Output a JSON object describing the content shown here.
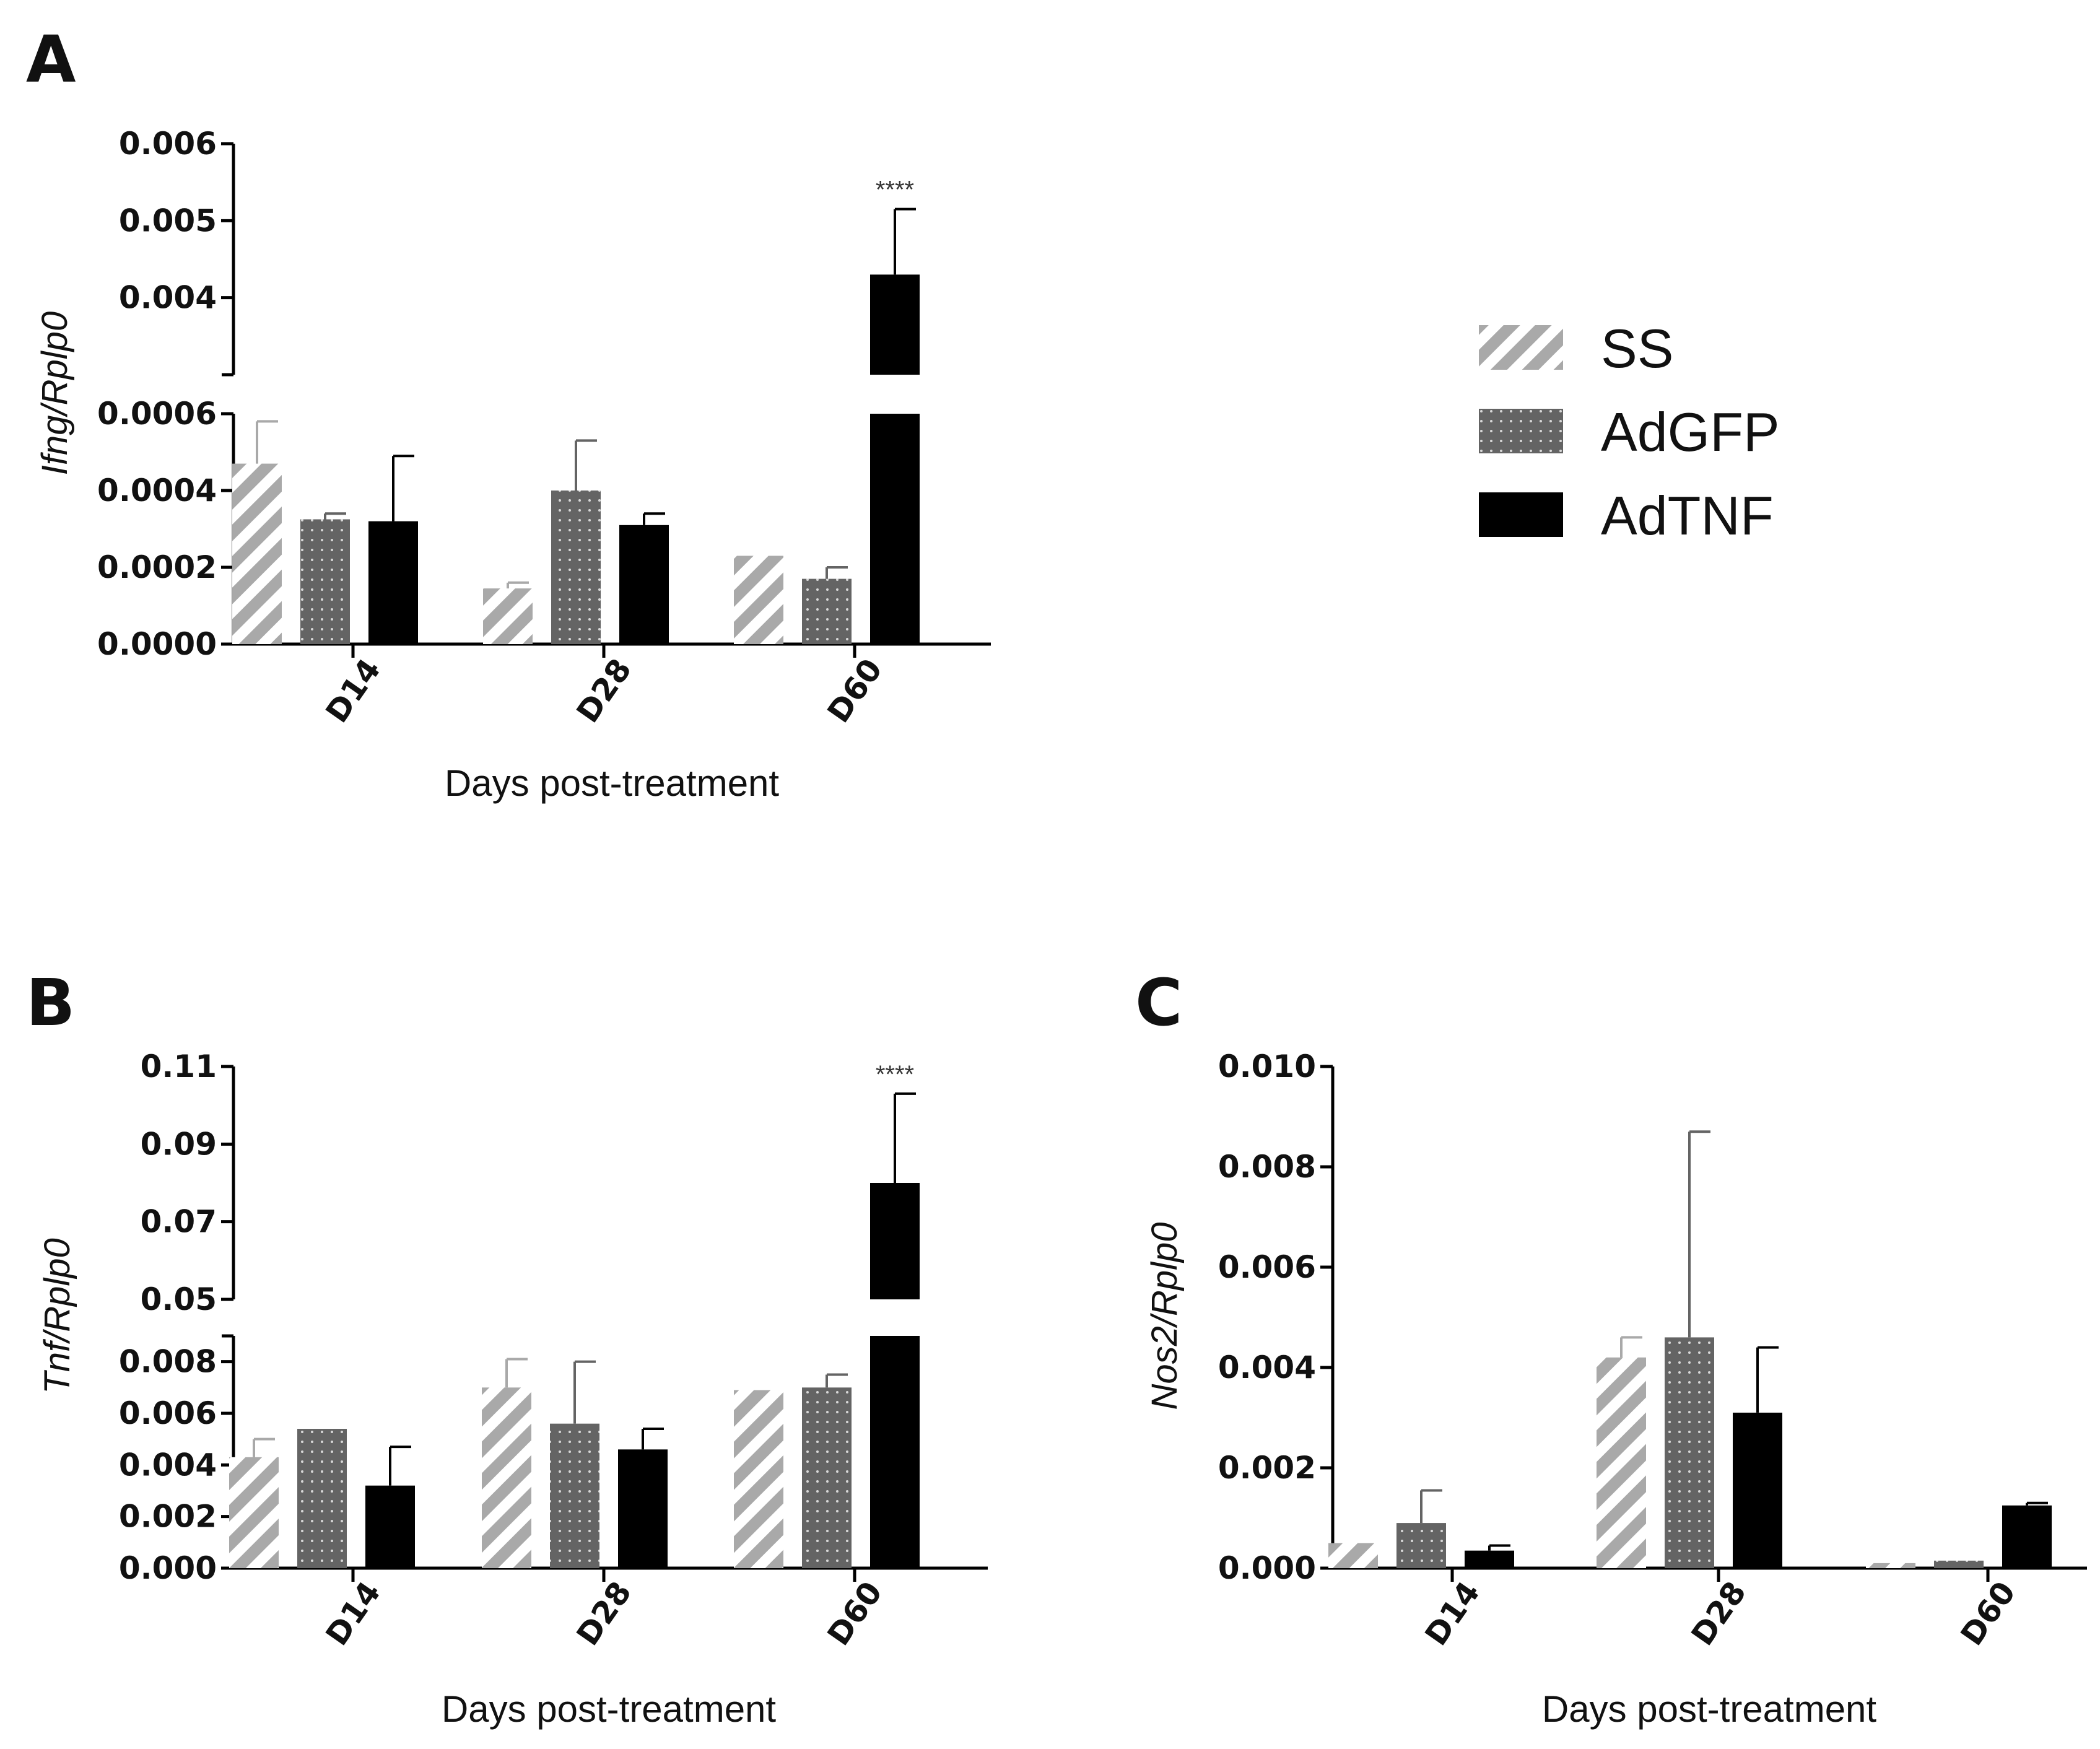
{
  "colors": {
    "ss": "#a9a9a9",
    "adgfp": "#646464",
    "adtnf": "#000000"
  },
  "legend": [
    {
      "label": "SS",
      "key": "ss"
    },
    {
      "label": "AdGFP",
      "key": "adgfp"
    },
    {
      "label": "AdTNF",
      "key": "adtnf"
    }
  ],
  "chart_data": [
    {
      "panel": "A",
      "type": "bar",
      "title": "",
      "xlabel": "Days post-treatment",
      "ylabel_gene": "Ifng",
      "ylabel_ref": "/Rplp0",
      "categories": [
        "D14",
        "D28",
        "D60"
      ],
      "axis_break": true,
      "lower_range": [
        0,
        0.0006
      ],
      "lower_ticks": [
        "0.0000",
        "0.0002",
        "0.0004",
        "0.0006"
      ],
      "upper_range": [
        0.003,
        0.006
      ],
      "upper_ticks": [
        "0.004",
        "0.005",
        "0.006"
      ],
      "series": [
        {
          "name": "SS",
          "values": [
            0.00047,
            0.000145,
            0.00023
          ],
          "errors": [
            0.00011,
            1.5e-05,
            0.0
          ]
        },
        {
          "name": "AdGFP",
          "values": [
            0.000325,
            0.0004,
            0.00017
          ],
          "errors": [
            1.5e-05,
            0.00013,
            3e-05
          ]
        },
        {
          "name": "AdTNF",
          "values": [
            0.00032,
            0.00031,
            0.0043
          ],
          "errors": [
            0.00017,
            3e-05,
            0.00085
          ]
        }
      ],
      "annotations": [
        {
          "category": "D60",
          "series": "AdTNF",
          "text": "****"
        }
      ]
    },
    {
      "panel": "B",
      "type": "bar",
      "title": "",
      "xlabel": "Days post-treatment",
      "ylabel_gene": "Tnf",
      "ylabel_ref": "/Rplp0",
      "categories": [
        "D14",
        "D28",
        "D60"
      ],
      "axis_break": true,
      "lower_range": [
        0,
        0.009
      ],
      "lower_ticks": [
        "0.000",
        "0.002",
        "0.004",
        "0.006",
        "0.008"
      ],
      "upper_range": [
        0.05,
        0.11
      ],
      "upper_ticks": [
        "0.05",
        "0.07",
        "0.09",
        "0.11"
      ],
      "series": [
        {
          "name": "SS",
          "values": [
            0.0043,
            0.007,
            0.0069
          ],
          "errors": [
            0.0007,
            0.0011,
            0.0
          ]
        },
        {
          "name": "AdGFP",
          "values": [
            0.0054,
            0.0056,
            0.007
          ],
          "errors": [
            0.0,
            0.0024,
            0.0005
          ]
        },
        {
          "name": "AdTNF",
          "values": [
            0.0032,
            0.0046,
            0.08
          ],
          "errors": [
            0.0015,
            0.0008,
            0.023
          ]
        }
      ],
      "annotations": [
        {
          "category": "D60",
          "series": "AdTNF",
          "text": "****"
        }
      ]
    },
    {
      "panel": "C",
      "type": "bar",
      "title": "",
      "xlabel": "Days post-treatment",
      "ylabel_gene": "Nos2",
      "ylabel_ref": "/Rplp0",
      "categories": [
        "D14",
        "D28",
        "D60"
      ],
      "axis_break": false,
      "ylim": [
        0,
        0.01
      ],
      "ticks": [
        "0.000",
        "0.002",
        "0.004",
        "0.006",
        "0.008",
        "0.010"
      ],
      "series": [
        {
          "name": "SS",
          "values": [
            0.0005,
            0.0042,
            0.0001
          ],
          "errors": [
            0.0,
            0.0004,
            0.0
          ]
        },
        {
          "name": "AdGFP",
          "values": [
            0.0009,
            0.0046,
            0.00015
          ],
          "errors": [
            0.00065,
            0.0041,
            0.0
          ]
        },
        {
          "name": "AdTNF",
          "values": [
            0.00035,
            0.0031,
            0.00125
          ],
          "errors": [
            0.0001,
            0.0013,
            5e-05
          ]
        }
      ],
      "annotations": []
    }
  ]
}
